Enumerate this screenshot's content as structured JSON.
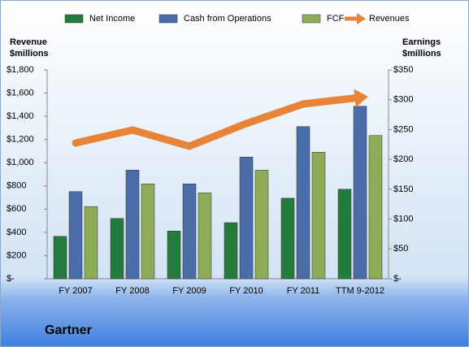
{
  "chart_data": {
    "type": "bar",
    "title": "Gartner",
    "y_label": [
      "Revenue",
      "$millions"
    ],
    "y2_label": [
      "Earnings",
      "$millions"
    ],
    "categories": [
      "FY 2007",
      "FY 2008",
      "FY 2009",
      "FY 2010",
      "FY 2011",
      "TTM 9-2012"
    ],
    "series": [
      {
        "name": "Net Income",
        "color": "#237b3e",
        "axis": "y2",
        "type": "bar",
        "values": [
          71,
          101,
          80,
          94,
          135,
          150
        ]
      },
      {
        "name": "Cash from Operations",
        "color": "#4a6ca8",
        "axis": "y2",
        "type": "bar",
        "values": [
          146,
          182,
          159,
          204,
          255,
          289
        ]
      },
      {
        "name": "FCF",
        "color": "#8eac58",
        "axis": "y2",
        "type": "bar",
        "values": [
          121,
          159,
          144,
          182,
          212,
          240
        ]
      },
      {
        "name": "Revenues",
        "color": "#e8843a",
        "axis": "y",
        "type": "line",
        "values": [
          1170,
          1282,
          1142,
          1338,
          1506,
          1562
        ]
      }
    ],
    "ylim": [
      0,
      1800
    ],
    "yticks": [
      {
        "value": 0,
        "label": "$-"
      },
      {
        "value": 200,
        "label": "$200"
      },
      {
        "value": 400,
        "label": "$400"
      },
      {
        "value": 600,
        "label": "$600"
      },
      {
        "value": 800,
        "label": "$800"
      },
      {
        "value": 1000,
        "label": "$1,000"
      },
      {
        "value": 1200,
        "label": "$1,200"
      },
      {
        "value": 1400,
        "label": "$1,400"
      },
      {
        "value": 1600,
        "label": "$1,600"
      },
      {
        "value": 1800,
        "label": "$1,800"
      }
    ],
    "y2lim": [
      0,
      350
    ],
    "y2ticks": [
      {
        "value": 0,
        "label": "$-"
      },
      {
        "value": 50,
        "label": "$50"
      },
      {
        "value": 100,
        "label": "$100"
      },
      {
        "value": 150,
        "label": "$150"
      },
      {
        "value": 200,
        "label": "$200"
      },
      {
        "value": 250,
        "label": "$250"
      },
      {
        "value": 300,
        "label": "$300"
      },
      {
        "value": 350,
        "label": "$350"
      }
    ],
    "legend": "top"
  }
}
